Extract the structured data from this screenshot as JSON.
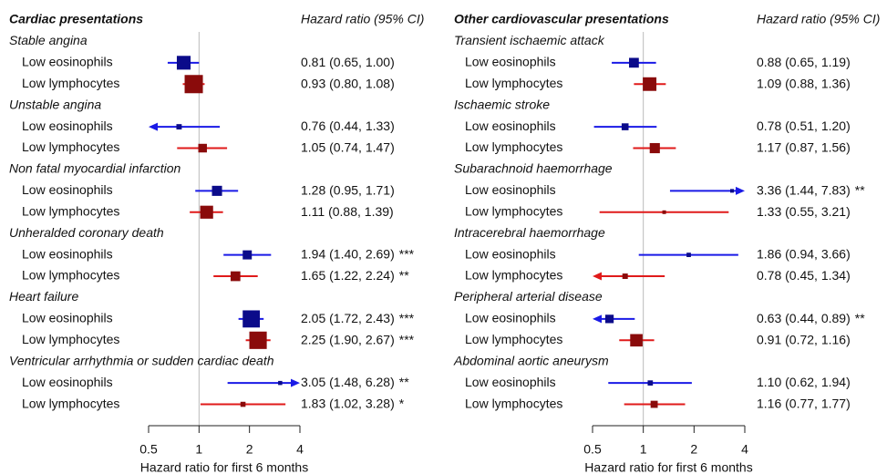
{
  "chart_data": [
    {
      "type": "forest",
      "title": "Cardiac presentations",
      "ci_header": "Hazard ratio (95% CI)",
      "xlabel": "Hazard ratio for first 6 months",
      "xscale": "log",
      "xlim": [
        0.5,
        4
      ],
      "xticks": [
        0.5,
        1,
        2,
        4
      ],
      "reference": 1,
      "box_colors": [
        "#0b0b8a",
        "#8a0b0b"
      ],
      "line_colors": [
        "#1a1ae6",
        "#e01a1a"
      ],
      "groups": [
        {
          "name": "Stable angina",
          "rows": [
            {
              "name": "Low eosinophils",
              "value": 0.81,
              "lower": 0.65,
              "upper": 1.0,
              "value_label": "0.81 (0.65, 1.00)"
            },
            {
              "name": "Low lymphocytes",
              "value": 0.93,
              "lower": 0.8,
              "upper": 1.08,
              "value_label": "0.93 (0.80, 1.08)"
            }
          ]
        },
        {
          "name": "Unstable angina",
          "rows": [
            {
              "name": "Low eosinophils",
              "value": 0.76,
              "lower": 0.44,
              "upper": 1.33,
              "value_label": "0.76 (0.44, 1.33)"
            },
            {
              "name": "Low lymphocytes",
              "value": 1.05,
              "lower": 0.74,
              "upper": 1.47,
              "value_label": "1.05 (0.74, 1.47)"
            }
          ]
        },
        {
          "name": "Non fatal myocardial infarction",
          "rows": [
            {
              "name": "Low eosinophils",
              "value": 1.28,
              "lower": 0.95,
              "upper": 1.71,
              "value_label": "1.28 (0.95, 1.71)"
            },
            {
              "name": "Low lymphocytes",
              "value": 1.11,
              "lower": 0.88,
              "upper": 1.39,
              "value_label": "1.11 (0.88, 1.39)"
            }
          ]
        },
        {
          "name": "Unheralded coronary death",
          "rows": [
            {
              "name": "Low eosinophils",
              "value": 1.94,
              "lower": 1.4,
              "upper": 2.69,
              "value_label": "1.94 (1.40, 2.69)",
              "stars": "***"
            },
            {
              "name": "Low lymphocytes",
              "value": 1.65,
              "lower": 1.22,
              "upper": 2.24,
              "value_label": "1.65 (1.22, 2.24)",
              "stars": "**"
            }
          ]
        },
        {
          "name": "Heart failure",
          "rows": [
            {
              "name": "Low eosinophils",
              "value": 2.05,
              "lower": 1.72,
              "upper": 2.43,
              "value_label": "2.05 (1.72, 2.43)",
              "stars": "***"
            },
            {
              "name": "Low lymphocytes",
              "value": 2.25,
              "lower": 1.9,
              "upper": 2.67,
              "value_label": "2.25 (1.90, 2.67)",
              "stars": "***"
            }
          ]
        },
        {
          "name": "Ventricular arrhythmia or sudden cardiac death",
          "rows": [
            {
              "name": "Low eosinophils",
              "value": 3.05,
              "lower": 1.48,
              "upper": 6.28,
              "value_label": "3.05 (1.48, 6.28)",
              "stars": "**"
            },
            {
              "name": "Low lymphocytes",
              "value": 1.83,
              "lower": 1.02,
              "upper": 3.28,
              "value_label": "1.83 (1.02, 3.28)",
              "stars": "*"
            }
          ]
        }
      ]
    },
    {
      "type": "forest",
      "title": "Other cardiovascular presentations",
      "ci_header": "Hazard ratio (95% CI)",
      "xlabel": "Hazard ratio for first 6 months",
      "xscale": "log",
      "xlim": [
        0.5,
        4
      ],
      "xticks": [
        0.5,
        1,
        2,
        4
      ],
      "reference": 1,
      "box_colors": [
        "#0b0b8a",
        "#8a0b0b"
      ],
      "line_colors": [
        "#1a1ae6",
        "#e01a1a"
      ],
      "groups": [
        {
          "name": "Transient ischaemic attack",
          "rows": [
            {
              "name": "Low eosinophils",
              "value": 0.88,
              "lower": 0.65,
              "upper": 1.19,
              "value_label": "0.88 (0.65, 1.19)"
            },
            {
              "name": "Low lymphocytes",
              "value": 1.09,
              "lower": 0.88,
              "upper": 1.36,
              "value_label": "1.09 (0.88, 1.36)"
            }
          ]
        },
        {
          "name": "Ischaemic stroke",
          "rows": [
            {
              "name": "Low eosinophils",
              "value": 0.78,
              "lower": 0.51,
              "upper": 1.2,
              "value_label": "0.78 (0.51, 1.20)"
            },
            {
              "name": "Low lymphocytes",
              "value": 1.17,
              "lower": 0.87,
              "upper": 1.56,
              "value_label": "1.17 (0.87, 1.56)"
            }
          ]
        },
        {
          "name": "Subarachnoid haemorrhage",
          "rows": [
            {
              "name": "Low eosinophils",
              "value": 3.36,
              "lower": 1.44,
              "upper": 7.83,
              "value_label": "3.36 (1.44, 7.83)",
              "stars": "**"
            },
            {
              "name": "Low lymphocytes",
              "value": 1.33,
              "lower": 0.55,
              "upper": 3.21,
              "value_label": "1.33 (0.55, 3.21)"
            }
          ]
        },
        {
          "name": "Intracerebral haemorrhage",
          "rows": [
            {
              "name": "Low eosinophils",
              "value": 1.86,
              "lower": 0.94,
              "upper": 3.66,
              "value_label": "1.86 (0.94, 3.66)"
            },
            {
              "name": "Low lymphocytes",
              "value": 0.78,
              "lower": 0.45,
              "upper": 1.34,
              "value_label": "0.78 (0.45, 1.34)"
            }
          ]
        },
        {
          "name": "Peripheral arterial disease",
          "rows": [
            {
              "name": "Low eosinophils",
              "value": 0.63,
              "lower": 0.44,
              "upper": 0.89,
              "value_label": "0.63 (0.44, 0.89)",
              "stars": "**"
            },
            {
              "name": "Low lymphocytes",
              "value": 0.91,
              "lower": 0.72,
              "upper": 1.16,
              "value_label": "0.91 (0.72, 1.16)"
            }
          ]
        },
        {
          "name": "Abdominal aortic aneurysm",
          "rows": [
            {
              "name": "Low eosinophils",
              "value": 1.1,
              "lower": 0.62,
              "upper": 1.94,
              "value_label": "1.10 (0.62, 1.94)"
            },
            {
              "name": "Low lymphocytes",
              "value": 1.16,
              "lower": 0.77,
              "upper": 1.77,
              "value_label": "1.16 (0.77, 1.77)"
            }
          ]
        }
      ]
    }
  ]
}
